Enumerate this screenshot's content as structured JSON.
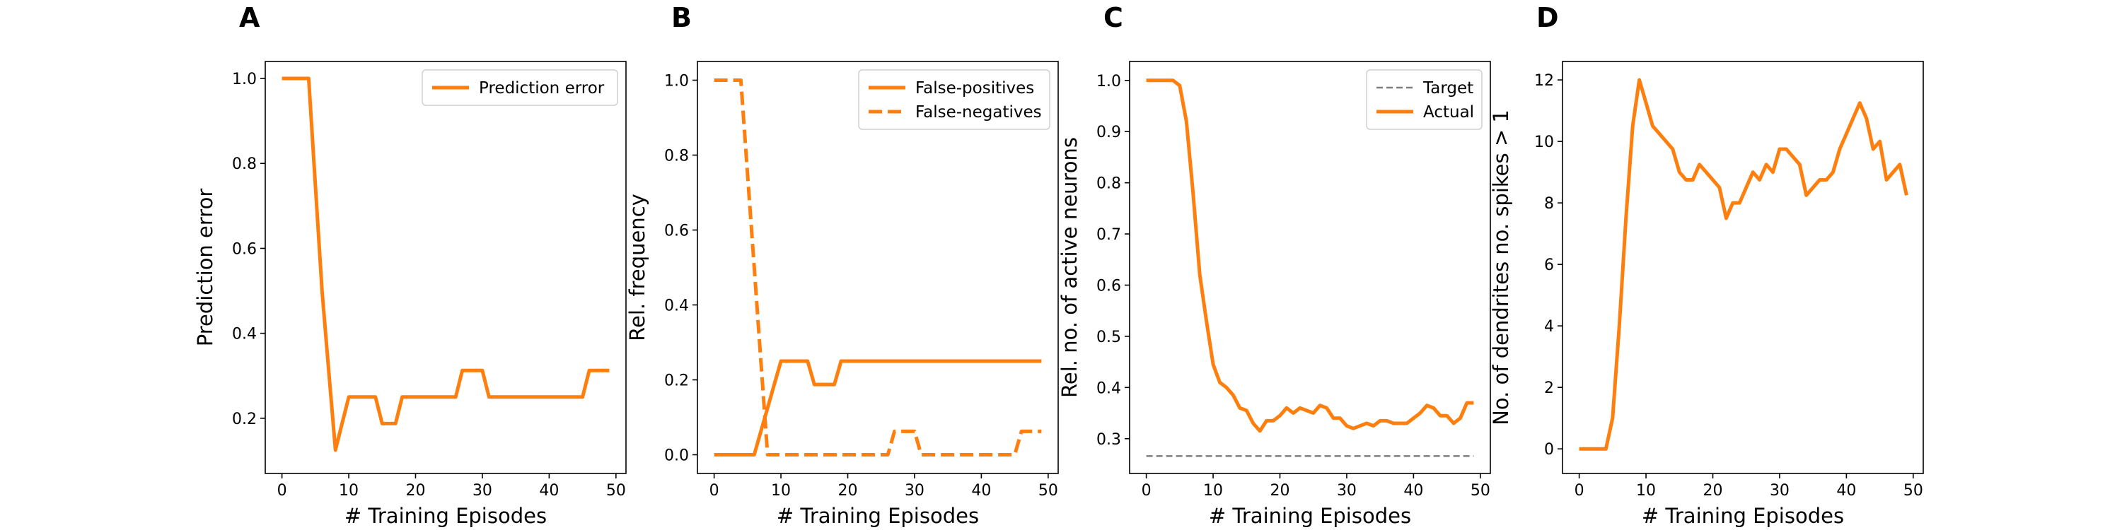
{
  "colors": {
    "orange": "#ff7f0e",
    "target": "#7f7f7f",
    "axis": "#000000"
  },
  "chart_data": [
    {
      "type": "line",
      "panel_label": "A",
      "xlabel": "# Training Episodes",
      "ylabel": "Prediction error",
      "xlim": [
        -2.5,
        51.5
      ],
      "ylim": [
        0.07,
        1.04
      ],
      "xticks": [
        0,
        10,
        20,
        30,
        40,
        50
      ],
      "yticks": [
        0.2,
        0.4,
        0.6,
        0.8,
        1.0
      ],
      "ytick_labels": [
        "0.2",
        "0.4",
        "0.6",
        "0.8",
        "1.0"
      ],
      "legend": "top-right",
      "series": [
        {
          "name": "Prediction error",
          "style": "solid",
          "color": "#ff7f0e",
          "x": [
            0,
            1,
            2,
            3,
            4,
            5,
            6,
            7,
            8,
            9,
            10,
            11,
            12,
            13,
            14,
            15,
            16,
            17,
            18,
            19,
            20,
            21,
            22,
            23,
            24,
            25,
            26,
            27,
            28,
            29,
            30,
            31,
            32,
            33,
            34,
            35,
            36,
            37,
            38,
            39,
            40,
            41,
            42,
            43,
            44,
            45,
            46,
            47,
            48,
            49
          ],
          "y": [
            1.0,
            1.0,
            1.0,
            1.0,
            1.0,
            0.75,
            0.5,
            0.3125,
            0.125,
            0.1875,
            0.25,
            0.25,
            0.25,
            0.25,
            0.25,
            0.1875,
            0.1875,
            0.1875,
            0.25,
            0.25,
            0.25,
            0.25,
            0.25,
            0.25,
            0.25,
            0.25,
            0.25,
            0.3125,
            0.3125,
            0.3125,
            0.3125,
            0.25,
            0.25,
            0.25,
            0.25,
            0.25,
            0.25,
            0.25,
            0.25,
            0.25,
            0.25,
            0.25,
            0.25,
            0.25,
            0.25,
            0.25,
            0.3125,
            0.3125,
            0.3125,
            0.3125
          ]
        }
      ]
    },
    {
      "type": "line",
      "panel_label": "B",
      "xlabel": "# Training Episodes",
      "ylabel": "Rel. frequency",
      "xlim": [
        -2.5,
        51.5
      ],
      "ylim": [
        -0.05,
        1.05
      ],
      "xticks": [
        0,
        10,
        20,
        30,
        40,
        50
      ],
      "yticks": [
        0.0,
        0.2,
        0.4,
        0.6,
        0.8,
        1.0
      ],
      "ytick_labels": [
        "0.0",
        "0.2",
        "0.4",
        "0.6",
        "0.8",
        "1.0"
      ],
      "legend": "top-right",
      "series": [
        {
          "name": "False-positives",
          "style": "solid",
          "color": "#ff7f0e",
          "x": [
            0,
            1,
            2,
            3,
            4,
            5,
            6,
            7,
            8,
            9,
            10,
            11,
            12,
            13,
            14,
            15,
            16,
            17,
            18,
            19,
            20,
            21,
            22,
            23,
            24,
            25,
            26,
            27,
            28,
            29,
            30,
            31,
            32,
            33,
            34,
            35,
            36,
            37,
            38,
            39,
            40,
            41,
            42,
            43,
            44,
            45,
            46,
            47,
            48,
            49
          ],
          "y": [
            0,
            0,
            0,
            0,
            0,
            0,
            0,
            0.0625,
            0.125,
            0.1875,
            0.25,
            0.25,
            0.25,
            0.25,
            0.25,
            0.1875,
            0.1875,
            0.1875,
            0.1875,
            0.25,
            0.25,
            0.25,
            0.25,
            0.25,
            0.25,
            0.25,
            0.25,
            0.25,
            0.25,
            0.25,
            0.25,
            0.25,
            0.25,
            0.25,
            0.25,
            0.25,
            0.25,
            0.25,
            0.25,
            0.25,
            0.25,
            0.25,
            0.25,
            0.25,
            0.25,
            0.25,
            0.25,
            0.25,
            0.25,
            0.25
          ]
        },
        {
          "name": "False-negatives",
          "style": "dashed",
          "color": "#ff7f0e",
          "x": [
            0,
            1,
            2,
            3,
            4,
            5,
            6,
            7,
            8,
            9,
            10,
            11,
            12,
            13,
            14,
            15,
            16,
            17,
            18,
            19,
            20,
            21,
            22,
            23,
            24,
            25,
            26,
            27,
            28,
            29,
            30,
            31,
            32,
            33,
            34,
            35,
            36,
            37,
            38,
            39,
            40,
            41,
            42,
            43,
            44,
            45,
            46,
            47,
            48,
            49
          ],
          "y": [
            1,
            1,
            1,
            1,
            1,
            0.75,
            0.5,
            0.25,
            0,
            0,
            0,
            0,
            0,
            0,
            0,
            0,
            0,
            0,
            0,
            0,
            0,
            0,
            0,
            0,
            0,
            0,
            0,
            0.0625,
            0.0625,
            0.0625,
            0.0625,
            0,
            0,
            0,
            0,
            0,
            0,
            0,
            0,
            0,
            0,
            0,
            0,
            0,
            0,
            0,
            0.0625,
            0.0625,
            0.0625,
            0.0625
          ]
        }
      ]
    },
    {
      "type": "line",
      "panel_label": "C",
      "xlabel": "# Training Episodes",
      "ylabel": "Rel. no. of active neurons",
      "xlim": [
        -2.5,
        51.5
      ],
      "ylim": [
        0.232,
        1.037
      ],
      "xticks": [
        0,
        10,
        20,
        30,
        40,
        50
      ],
      "yticks": [
        0.3,
        0.4,
        0.5,
        0.6,
        0.7,
        0.8,
        0.9,
        1.0
      ],
      "ytick_labels": [
        "0.3",
        "0.4",
        "0.5",
        "0.6",
        "0.7",
        "0.8",
        "0.9",
        "1.0"
      ],
      "legend": "top-right",
      "series": [
        {
          "name": "Target",
          "style": "dashed-thin",
          "color": "#7f7f7f",
          "x": [
            0,
            49
          ],
          "y": [
            0.266,
            0.266
          ]
        },
        {
          "name": "Actual",
          "style": "solid",
          "color": "#ff7f0e",
          "x": [
            0,
            1,
            2,
            3,
            4,
            5,
            6,
            7,
            8,
            9,
            10,
            11,
            12,
            13,
            14,
            15,
            16,
            17,
            18,
            19,
            20,
            21,
            22,
            23,
            24,
            25,
            26,
            27,
            28,
            29,
            30,
            31,
            32,
            33,
            34,
            35,
            36,
            37,
            38,
            39,
            40,
            41,
            42,
            43,
            44,
            45,
            46,
            47,
            48,
            49
          ],
          "y": [
            1.0,
            1.0,
            1.0,
            1.0,
            1.0,
            0.99,
            0.92,
            0.78,
            0.62,
            0.53,
            0.445,
            0.41,
            0.4,
            0.385,
            0.36,
            0.355,
            0.33,
            0.315,
            0.335,
            0.335,
            0.345,
            0.36,
            0.35,
            0.36,
            0.355,
            0.35,
            0.365,
            0.36,
            0.34,
            0.34,
            0.325,
            0.32,
            0.325,
            0.33,
            0.325,
            0.335,
            0.335,
            0.33,
            0.33,
            0.33,
            0.34,
            0.35,
            0.365,
            0.36,
            0.345,
            0.345,
            0.33,
            0.34,
            0.37,
            0.37
          ]
        }
      ]
    },
    {
      "type": "line",
      "panel_label": "D",
      "xlabel": "# Training Episodes",
      "ylabel": "No. of dendrites no. spikes > 1",
      "xlim": [
        -2.5,
        51.5
      ],
      "ylim": [
        -0.8,
        12.6
      ],
      "xticks": [
        0,
        10,
        20,
        30,
        40,
        50
      ],
      "yticks": [
        0,
        2,
        4,
        6,
        8,
        10,
        12
      ],
      "ytick_labels": [
        "0",
        "2",
        "4",
        "6",
        "8",
        "10",
        "12"
      ],
      "legend": "",
      "series": [
        {
          "style": "solid",
          "color": "#ff7f0e",
          "x": [
            0,
            1,
            2,
            3,
            4,
            5,
            6,
            7,
            8,
            9,
            10,
            11,
            12,
            13,
            14,
            15,
            16,
            17,
            18,
            19,
            20,
            21,
            22,
            23,
            24,
            25,
            26,
            27,
            28,
            29,
            30,
            31,
            32,
            33,
            34,
            35,
            36,
            37,
            38,
            39,
            40,
            41,
            42,
            43,
            44,
            45,
            46,
            47,
            48,
            49
          ],
          "y": [
            0,
            0,
            0,
            0,
            0,
            1,
            4,
            7.5,
            10.5,
            12,
            11.25,
            10.5,
            10.25,
            10,
            9.75,
            9,
            8.75,
            8.75,
            9.25,
            9,
            8.75,
            8.5,
            7.5,
            8,
            8,
            8.5,
            9,
            8.75,
            9.25,
            9,
            9.75,
            9.75,
            9.5,
            9.25,
            8.25,
            8.5,
            8.75,
            8.75,
            9,
            9.75,
            10.25,
            10.75,
            11.25,
            10.75,
            9.75,
            10,
            8.75,
            9,
            9.25,
            8.25
          ]
        }
      ]
    }
  ]
}
